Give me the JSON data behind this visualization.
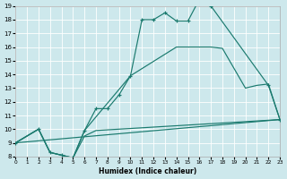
{
  "xlabel": "Humidex (Indice chaleur)",
  "xlim": [
    0,
    23
  ],
  "ylim": [
    8,
    19
  ],
  "xticks": [
    0,
    1,
    2,
    3,
    4,
    5,
    6,
    7,
    8,
    9,
    10,
    11,
    12,
    13,
    14,
    15,
    16,
    17,
    18,
    19,
    20,
    21,
    22,
    23
  ],
  "yticks": [
    8,
    9,
    10,
    11,
    12,
    13,
    14,
    15,
    16,
    17,
    18,
    19
  ],
  "bg_color": "#cde8ec",
  "line_color": "#1a7a6e",
  "line1_x": [
    0,
    2,
    3,
    4,
    5,
    6,
    7,
    8,
    9,
    10,
    11,
    12,
    13,
    14,
    15,
    16,
    17,
    22,
    23
  ],
  "line1_y": [
    9.0,
    10.0,
    8.3,
    8.1,
    7.9,
    9.9,
    11.5,
    11.5,
    12.5,
    13.9,
    18.0,
    18.0,
    18.5,
    17.9,
    17.9,
    19.5,
    19.0,
    13.2,
    10.7
  ],
  "line2_x": [
    0,
    2,
    3,
    5,
    6,
    10,
    14,
    15,
    17,
    18,
    20,
    21,
    22,
    23
  ],
  "line2_y": [
    9.0,
    10.0,
    8.3,
    7.9,
    9.9,
    13.9,
    16.0,
    16.0,
    16.0,
    15.9,
    13.0,
    13.2,
    13.3,
    10.7
  ],
  "line3_x": [
    0,
    2,
    3,
    5,
    6,
    7,
    23
  ],
  "line3_y": [
    9.0,
    10.0,
    8.3,
    7.9,
    9.5,
    9.9,
    10.7
  ],
  "line4_x": [
    0,
    23
  ],
  "line4_y": [
    9.0,
    10.7
  ]
}
